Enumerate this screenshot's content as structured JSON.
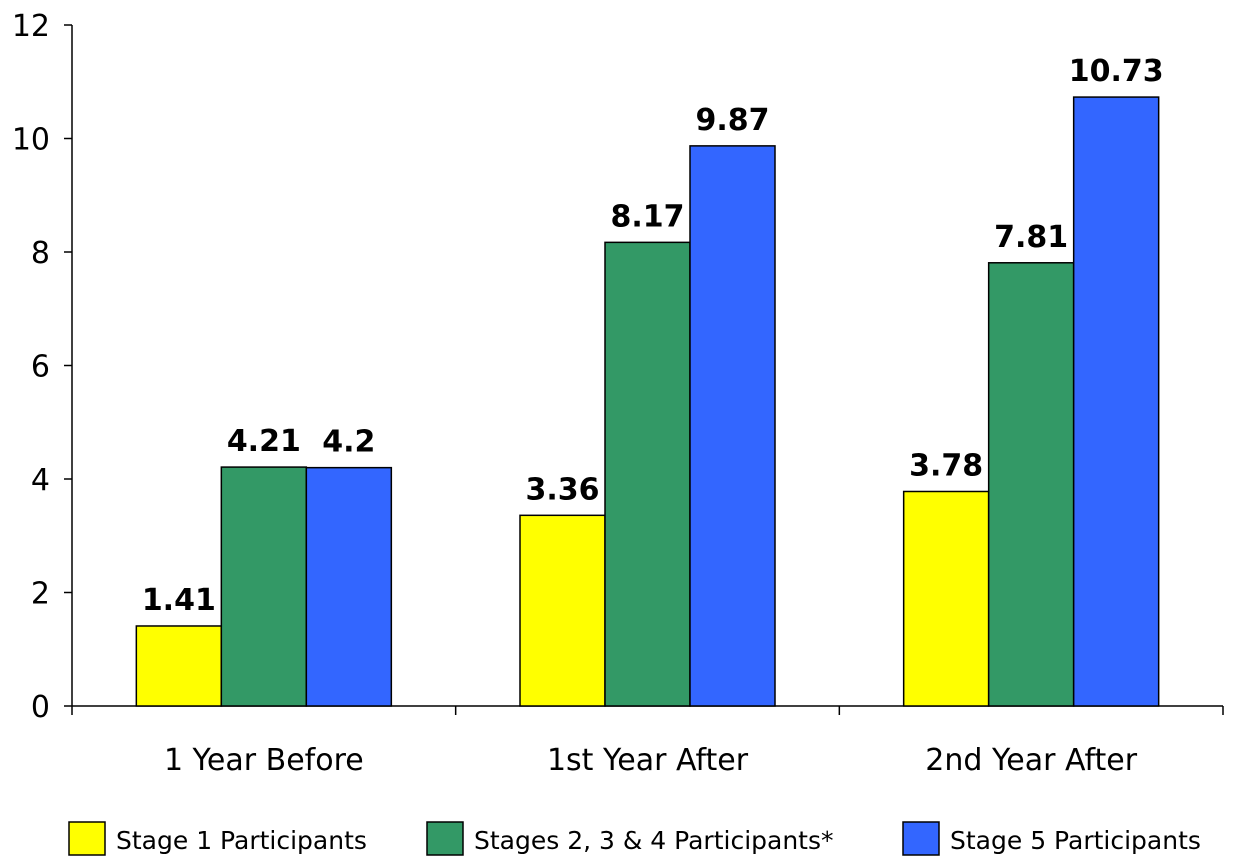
{
  "chart_data": {
    "type": "bar",
    "categories": [
      "1 Year Before",
      "1st Year After",
      "2nd Year After"
    ],
    "series": [
      {
        "name": "Stage 1 Participants",
        "color": "#ffff00",
        "values": [
          1.41,
          3.36,
          3.78
        ],
        "labels": [
          "1.41",
          "3.36",
          "3.78"
        ]
      },
      {
        "name": "Stages 2, 3 & 4 Participants*",
        "color": "#339966",
        "values": [
          4.21,
          8.17,
          7.81
        ],
        "labels": [
          "4.21",
          "8.17",
          "7.81"
        ]
      },
      {
        "name": "Stage 5 Participants",
        "color": "#3366ff",
        "values": [
          4.2,
          9.87,
          10.73
        ],
        "labels": [
          "4.2",
          "9.87",
          "10.73"
        ]
      }
    ],
    "y_ticks": [
      "0",
      "2",
      "4",
      "6",
      "8",
      "10",
      "12"
    ],
    "ylim": [
      0,
      12
    ],
    "grid": false,
    "legend_position": "bottom",
    "title": "",
    "xlabel": "",
    "ylabel": ""
  }
}
